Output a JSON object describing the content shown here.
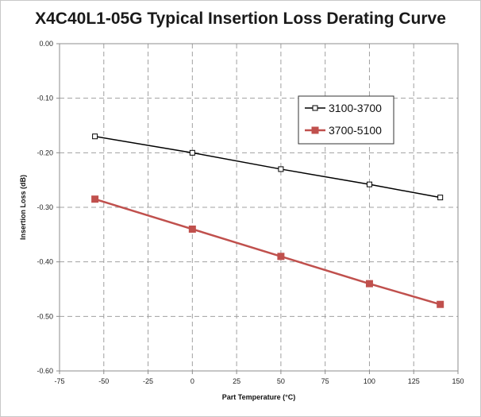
{
  "chart_data": {
    "type": "line",
    "title": "X4C40L1-05G Typical Insertion Loss Derating Curve",
    "xlabel": "Part Temperature (°C)",
    "ylabel": "Insertion Loss (dB)",
    "xlim": [
      -75,
      150
    ],
    "ylim": [
      -0.6,
      0.0
    ],
    "xticks": [
      -75,
      -50,
      -25,
      0,
      25,
      50,
      75,
      100,
      125,
      150
    ],
    "yticks": [
      0.0,
      -0.1,
      -0.2,
      -0.3,
      -0.4,
      -0.5,
      -0.6
    ],
    "xtick_labels": [
      "-75",
      "-50",
      "-25",
      "0",
      "25",
      "50",
      "75",
      "100",
      "125",
      "150"
    ],
    "ytick_labels": [
      "0.00",
      "-0.10",
      "-0.20",
      "-0.30",
      "-0.40",
      "-0.50",
      "-0.60"
    ],
    "grid": "dashed",
    "legend_position": "top-right",
    "series": [
      {
        "name": "3100-3700",
        "color": "#000000",
        "marker": "open-square",
        "x": [
          -55,
          0,
          50,
          100,
          140
        ],
        "y": [
          -0.17,
          -0.2,
          -0.23,
          -0.258,
          -0.282
        ]
      },
      {
        "name": "3700-5100",
        "color": "#c0504d",
        "marker": "filled-square",
        "x": [
          -55,
          0,
          50,
          100,
          140
        ],
        "y": [
          -0.285,
          -0.34,
          -0.39,
          -0.44,
          -0.478
        ]
      }
    ]
  }
}
